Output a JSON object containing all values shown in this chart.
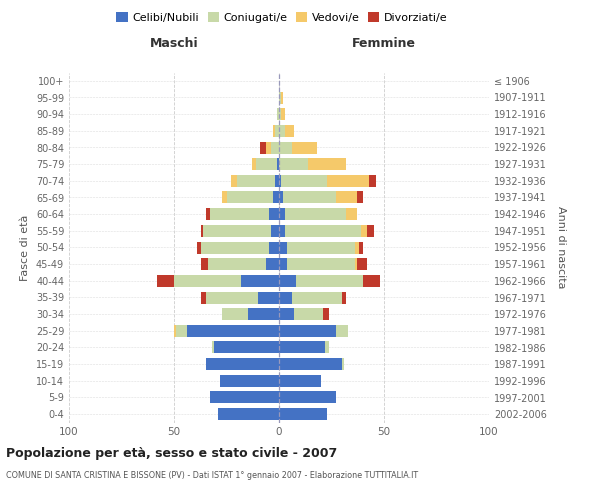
{
  "age_groups": [
    "100+",
    "95-99",
    "90-94",
    "85-89",
    "80-84",
    "75-79",
    "70-74",
    "65-69",
    "60-64",
    "55-59",
    "50-54",
    "45-49",
    "40-44",
    "35-39",
    "30-34",
    "25-29",
    "20-24",
    "15-19",
    "10-14",
    "5-9",
    "0-4"
  ],
  "birth_years": [
    "≤ 1906",
    "1907-1911",
    "1912-1916",
    "1917-1921",
    "1922-1926",
    "1927-1931",
    "1932-1936",
    "1937-1941",
    "1942-1946",
    "1947-1951",
    "1952-1956",
    "1957-1961",
    "1962-1966",
    "1967-1971",
    "1972-1976",
    "1977-1981",
    "1982-1986",
    "1987-1991",
    "1992-1996",
    "1997-2001",
    "2002-2006"
  ],
  "male_celibi": [
    0,
    0,
    0,
    0,
    0,
    1,
    2,
    3,
    5,
    4,
    5,
    6,
    18,
    10,
    15,
    44,
    31,
    35,
    28,
    33,
    29
  ],
  "male_coniugati": [
    0,
    0,
    1,
    2,
    4,
    10,
    18,
    22,
    28,
    32,
    32,
    28,
    32,
    25,
    12,
    5,
    1,
    0,
    0,
    0,
    0
  ],
  "male_vedovi": [
    0,
    0,
    0,
    1,
    2,
    2,
    3,
    2,
    0,
    0,
    0,
    0,
    0,
    0,
    0,
    1,
    0,
    0,
    0,
    0,
    0
  ],
  "male_divorziati": [
    0,
    0,
    0,
    0,
    3,
    0,
    0,
    0,
    2,
    1,
    2,
    3,
    8,
    2,
    0,
    0,
    0,
    0,
    0,
    0,
    0
  ],
  "female_nubili": [
    0,
    0,
    0,
    0,
    0,
    0,
    1,
    2,
    3,
    3,
    4,
    4,
    8,
    6,
    7,
    27,
    22,
    30,
    20,
    27,
    23
  ],
  "female_coniugate": [
    0,
    1,
    1,
    3,
    6,
    14,
    22,
    25,
    29,
    36,
    32,
    32,
    32,
    24,
    14,
    6,
    2,
    1,
    0,
    0,
    0
  ],
  "female_vedove": [
    0,
    1,
    2,
    4,
    12,
    18,
    20,
    10,
    5,
    3,
    2,
    1,
    0,
    0,
    0,
    0,
    0,
    0,
    0,
    0,
    0
  ],
  "female_divorziate": [
    0,
    0,
    0,
    0,
    0,
    0,
    3,
    3,
    0,
    3,
    2,
    5,
    8,
    2,
    3,
    0,
    0,
    0,
    0,
    0,
    0
  ],
  "color_celibi": "#4472c4",
  "color_coniugati": "#c8d9a8",
  "color_vedovi": "#f5c96a",
  "color_divorziati": "#c0392b",
  "xlim": 100,
  "title": "Popolazione per età, sesso e stato civile - 2007",
  "subtitle": "COMUNE DI SANTA CRISTINA E BISSONE (PV) - Dati ISTAT 1° gennaio 2007 - Elaborazione TUTTITALIA.IT",
  "label_maschi": "Maschi",
  "label_femmine": "Femmine",
  "ylabel_left": "Fasce di età",
  "ylabel_right": "Anni di nascita",
  "legend_labels": [
    "Celibi/Nubili",
    "Coniugati/e",
    "Vedovi/e",
    "Divorziati/e"
  ]
}
